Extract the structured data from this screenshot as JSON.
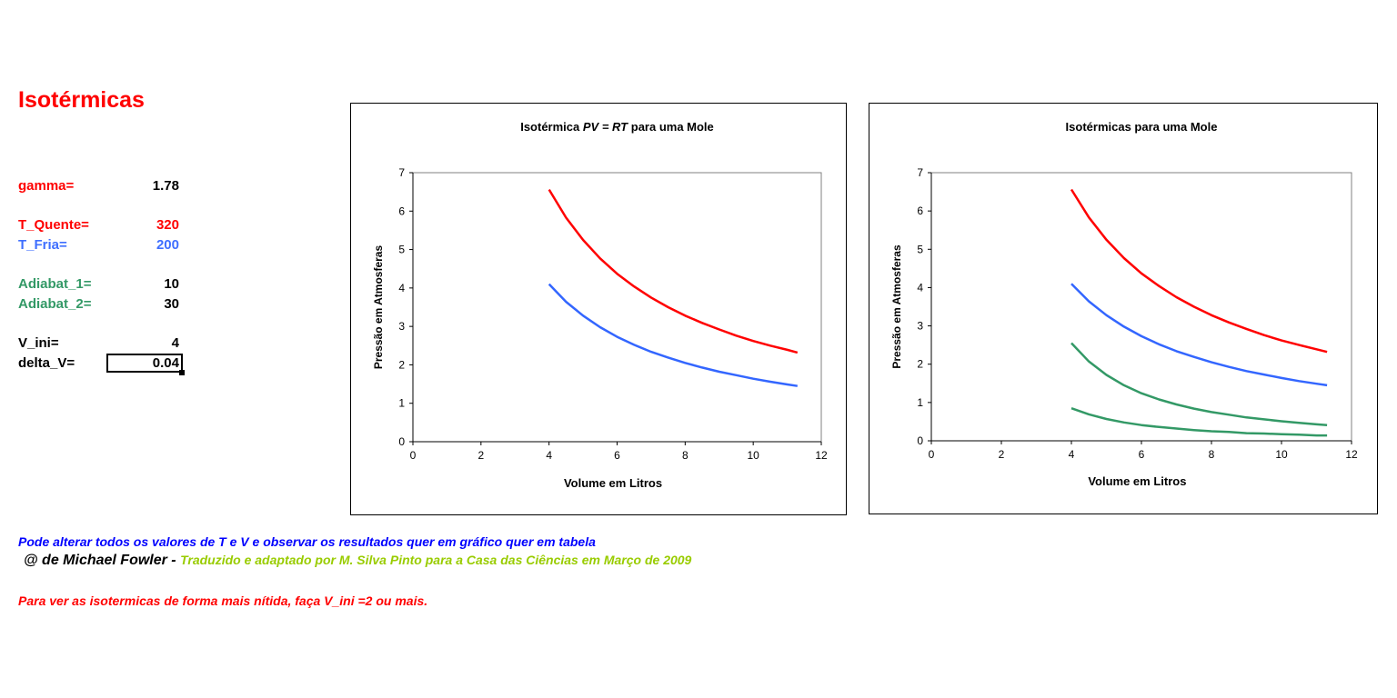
{
  "sheet": {
    "title": "Isotérmicas",
    "params": {
      "gamma_label": "gamma=",
      "gamma_value": "1.78",
      "t_quente_label": "T_Quente=",
      "t_quente_value": "320",
      "t_fria_label": "T_Fria=",
      "t_fria_value": "200",
      "adiabat1_label": "Adiabat_1=",
      "adiabat1_value": "10",
      "adiabat2_label": "Adiabat_2=",
      "adiabat2_value": "30",
      "vini_label": "V_ini=",
      "vini_value": "4",
      "deltav_label": "delta_V=",
      "deltav_value": "0.04"
    },
    "notes": {
      "line1": "Pode alterar todos os valores de T e V e observar os resultados quer em gráfico quer em tabela",
      "line2_author": "@ de Michael Fowler",
      "line2_sep": " - ",
      "line2_credit": "Traduzido e adaptado por M. Silva Pinto para a Casa das Ciências em Março de 2009",
      "line3": "Para ver as isotermicas de forma mais nítida, faça  V_ini =2 ou mais."
    }
  },
  "colors": {
    "hot": "#ff0000",
    "cold": "#3366ff",
    "adiabat": "#339966"
  },
  "chart_data": [
    {
      "type": "line",
      "title_pre": "Isotérmica ",
      "title_em": "PV = RT",
      "title_post": " para uma Mole",
      "xlabel": "Volume em Litros",
      "ylabel": "Pressão em Atmosferas",
      "xlim": [
        0,
        12
      ],
      "ylim": [
        0,
        7
      ],
      "xticks": [
        "0",
        "2",
        "4",
        "6",
        "8",
        "10",
        "12"
      ],
      "yticks": [
        "0",
        "1",
        "2",
        "3",
        "4",
        "5",
        "6",
        "7"
      ],
      "grid": false,
      "series": [
        {
          "color": "#ff0000",
          "x": [
            4.0,
            4.5,
            5.0,
            5.5,
            6.0,
            6.5,
            7.0,
            7.5,
            8.0,
            8.5,
            9.0,
            9.5,
            10.0,
            10.5,
            11.0,
            11.3
          ],
          "y": [
            6.56,
            5.83,
            5.25,
            4.77,
            4.37,
            4.04,
            3.75,
            3.5,
            3.28,
            3.09,
            2.92,
            2.76,
            2.62,
            2.5,
            2.39,
            2.32
          ]
        },
        {
          "color": "#3366ff",
          "x": [
            4.0,
            4.5,
            5.0,
            5.5,
            6.0,
            6.5,
            7.0,
            7.5,
            8.0,
            8.5,
            9.0,
            9.5,
            10.0,
            10.5,
            11.0,
            11.3
          ],
          "y": [
            4.1,
            3.64,
            3.28,
            2.98,
            2.73,
            2.52,
            2.34,
            2.19,
            2.05,
            1.93,
            1.82,
            1.73,
            1.64,
            1.56,
            1.49,
            1.45
          ]
        }
      ]
    },
    {
      "type": "line",
      "title_pre": "Isotérmicas para uma Mole",
      "title_em": "",
      "title_post": "",
      "xlabel": "Volume em Litros",
      "ylabel": "Pressão em Atmosferas",
      "xlim": [
        0,
        12
      ],
      "ylim": [
        0,
        7
      ],
      "xticks": [
        "0",
        "2",
        "4",
        "6",
        "8",
        "10",
        "12"
      ],
      "yticks": [
        "0",
        "1",
        "2",
        "3",
        "4",
        "5",
        "6",
        "7"
      ],
      "grid": false,
      "series": [
        {
          "color": "#ff0000",
          "x": [
            4.0,
            4.5,
            5.0,
            5.5,
            6.0,
            6.5,
            7.0,
            7.5,
            8.0,
            8.5,
            9.0,
            9.5,
            10.0,
            10.5,
            11.0,
            11.3
          ],
          "y": [
            6.56,
            5.83,
            5.25,
            4.77,
            4.37,
            4.04,
            3.75,
            3.5,
            3.28,
            3.09,
            2.92,
            2.76,
            2.62,
            2.5,
            2.39,
            2.32
          ]
        },
        {
          "color": "#3366ff",
          "x": [
            4.0,
            4.5,
            5.0,
            5.5,
            6.0,
            6.5,
            7.0,
            7.5,
            8.0,
            8.5,
            9.0,
            9.5,
            10.0,
            10.5,
            11.0,
            11.3
          ],
          "y": [
            4.1,
            3.64,
            3.28,
            2.98,
            2.73,
            2.52,
            2.34,
            2.19,
            2.05,
            1.93,
            1.82,
            1.73,
            1.64,
            1.56,
            1.49,
            1.45
          ]
        },
        {
          "color": "#339966",
          "x": [
            4.0,
            4.5,
            5.0,
            5.5,
            6.0,
            6.5,
            7.0,
            7.5,
            8.0,
            8.5,
            9.0,
            9.5,
            10.0,
            10.5,
            11.0,
            11.3
          ],
          "y": [
            2.55,
            2.07,
            1.72,
            1.45,
            1.24,
            1.08,
            0.95,
            0.84,
            0.75,
            0.68,
            0.61,
            0.56,
            0.51,
            0.47,
            0.43,
            0.41
          ]
        },
        {
          "color": "#339966",
          "x": [
            4.0,
            4.5,
            5.0,
            5.5,
            6.0,
            6.5,
            7.0,
            7.5,
            8.0,
            8.5,
            9.0,
            9.5,
            10.0,
            10.5,
            11.0,
            11.3
          ],
          "y": [
            0.85,
            0.69,
            0.57,
            0.48,
            0.41,
            0.36,
            0.32,
            0.28,
            0.25,
            0.23,
            0.2,
            0.19,
            0.17,
            0.16,
            0.14,
            0.14
          ]
        }
      ]
    }
  ]
}
